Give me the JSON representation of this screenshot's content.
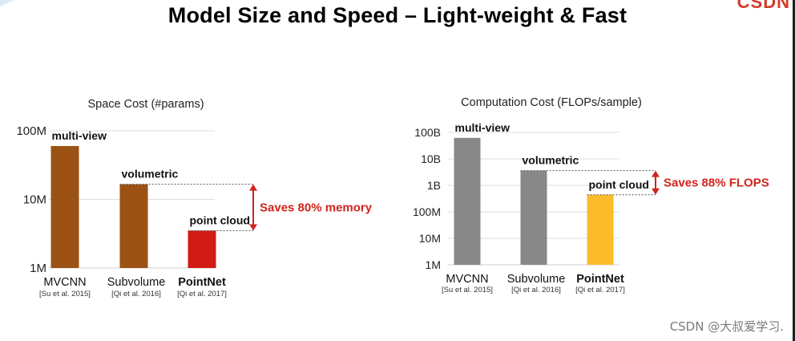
{
  "page": {
    "title": "Model Size and Speed – Light-weight & Fast",
    "logo_text": "CSDN",
    "watermark": "CSDN @大叔爱学习."
  },
  "chart_data": [
    {
      "type": "bar",
      "title": "Space Cost (#params)",
      "scale": "log",
      "ylim": [
        1000000,
        100000000
      ],
      "y_ticks": [
        {
          "value": 1000000,
          "label": "1M"
        },
        {
          "value": 10000000,
          "label": "10M"
        },
        {
          "value": 100000000,
          "label": "100M"
        }
      ],
      "categories": [
        "MVCNN",
        "Subvolume",
        "PointNet"
      ],
      "citations": [
        "[Su et al. 2015]",
        "[Qi et al. 2016]",
        "[Qi et al. 2017]"
      ],
      "bar_labels": [
        "multi-view",
        "volumetric",
        "point cloud"
      ],
      "values": [
        60000000,
        16600000,
        3500000
      ],
      "colors": [
        "#9c5214",
        "#9c5214",
        "#d01c14"
      ],
      "highlight_category": "PointNet",
      "grid": true,
      "annotation": {
        "text": "Saves 80% memory",
        "color": "#d0241c",
        "from": "Subvolume",
        "to": "PointNet"
      }
    },
    {
      "type": "bar",
      "title": "Computation Cost (FLOPs/sample)",
      "scale": "log",
      "ylim": [
        1000000,
        100000000000
      ],
      "y_ticks": [
        {
          "value": 1000000,
          "label": "1M"
        },
        {
          "value": 10000000,
          "label": "10M"
        },
        {
          "value": 100000000,
          "label": "100M"
        },
        {
          "value": 1000000000,
          "label": "1B"
        },
        {
          "value": 10000000000,
          "label": "10B"
        },
        {
          "value": 100000000000,
          "label": "100B"
        }
      ],
      "categories": [
        "MVCNN",
        "Subvolume",
        "PointNet"
      ],
      "citations": [
        "[Su et al. 2015]",
        "[Qi et al. 2016]",
        "[Qi et al. 2017]"
      ],
      "bar_labels": [
        "multi-view",
        "volumetric",
        "point cloud"
      ],
      "values": [
        62000000000,
        3600000000,
        440000000
      ],
      "colors": [
        "#888888",
        "#888888",
        "#fbbc2a"
      ],
      "highlight_category": "PointNet",
      "grid": true,
      "annotation": {
        "text": "Saves 88% FLOPS",
        "color": "#d0241c",
        "from": "Subvolume",
        "to": "PointNet"
      }
    }
  ]
}
